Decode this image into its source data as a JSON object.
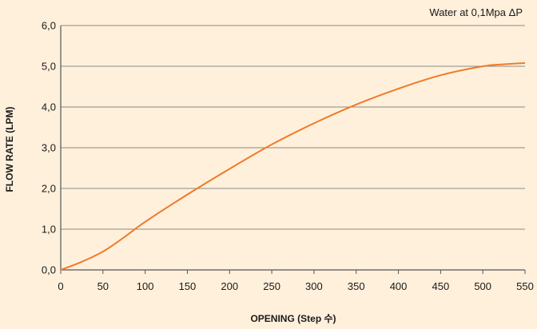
{
  "chart_data": {
    "type": "line",
    "title": "",
    "annotation": "Water at 0,1Mpa ΔP",
    "xlabel": "OPENING (Step 수)",
    "ylabel": "FLOW RATE (LPM)",
    "xlim": [
      0,
      550
    ],
    "ylim": [
      0,
      6
    ],
    "x_ticks": [
      0,
      50,
      100,
      150,
      200,
      250,
      300,
      350,
      400,
      450,
      500,
      550
    ],
    "x_tick_labels": [
      "0",
      "50",
      "100",
      "150",
      "200",
      "250",
      "300",
      "350",
      "400",
      "450",
      "500",
      "550"
    ],
    "y_ticks": [
      0,
      1,
      2,
      3,
      4,
      5,
      6
    ],
    "y_tick_labels": [
      "0,0",
      "1,0",
      "2,0",
      "3,0",
      "4,0",
      "5,0",
      "6,0"
    ],
    "grid": "horizontal",
    "line_color": "#f07a2a",
    "series": [
      {
        "x": [
          0,
          25,
          50,
          75,
          100,
          150,
          200,
          250,
          300,
          350,
          400,
          450,
          500,
          525,
          550
        ],
        "y": [
          0.0,
          0.2,
          0.45,
          0.8,
          1.18,
          1.85,
          2.48,
          3.08,
          3.6,
          4.06,
          4.45,
          4.78,
          5.0,
          5.05,
          5.08
        ]
      }
    ]
  }
}
